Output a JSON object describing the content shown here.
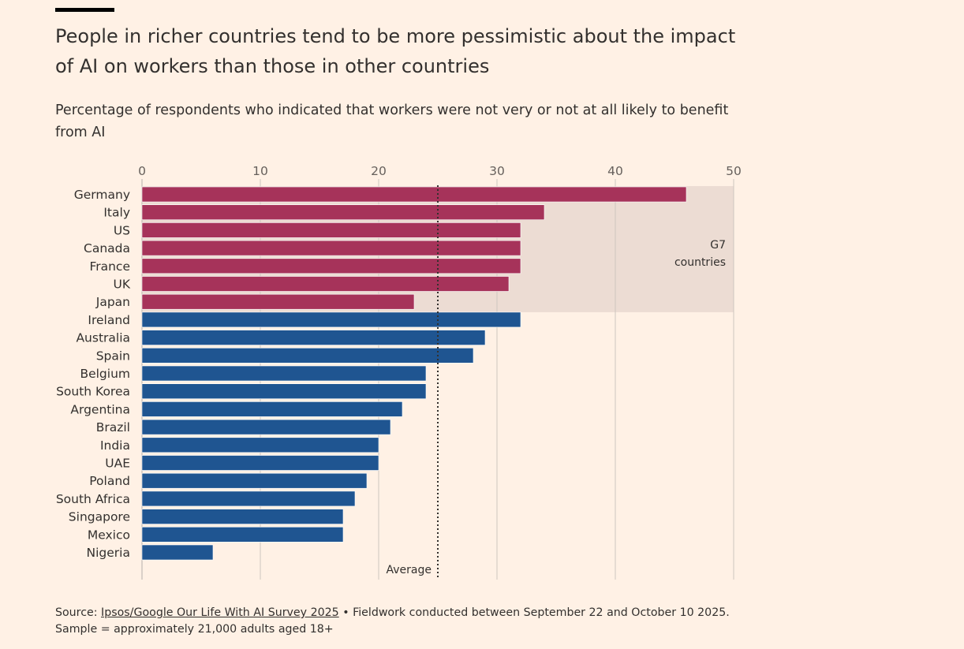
{
  "title": "People in richer countries tend to be more pessimistic about the impact of AI on workers than those in other countries",
  "subtitle": "Percentage of respondents who indicated that workers were not very or not at all likely to benefit from AI",
  "source": {
    "prefix": "Source: ",
    "link_text": "Ipsos/Google Our Life With AI Survey 2025",
    "suffix": " • Fieldwork conducted between September 22 and October 10 2025. Sample = approximately 21,000 adults aged 18+"
  },
  "colors": {
    "g7": "#a6335a",
    "other": "#1f5591",
    "g7_band": "#ecdcd3",
    "background": "#fff1e5",
    "grid": "#cec6bf"
  },
  "chart_data": {
    "type": "bar",
    "orientation": "horizontal",
    "xlim": [
      0,
      50
    ],
    "ticks": [
      0,
      10,
      20,
      30,
      40,
      50
    ],
    "grid": true,
    "categories": [
      "Germany",
      "Italy",
      "US",
      "Canada",
      "France",
      "UK",
      "Japan",
      "Ireland",
      "Australia",
      "Spain",
      "Belgium",
      "South Korea",
      "Argentina",
      "Brazil",
      "India",
      "UAE",
      "Poland",
      "South Africa",
      "Singapore",
      "Mexico",
      "Nigeria"
    ],
    "values": [
      46,
      34,
      32,
      32,
      32,
      31,
      23,
      32,
      29,
      28,
      24,
      24,
      22,
      21,
      20,
      20,
      19,
      18,
      17,
      17,
      6
    ],
    "groups": [
      "g7",
      "g7",
      "g7",
      "g7",
      "g7",
      "g7",
      "g7",
      "other",
      "other",
      "other",
      "other",
      "other",
      "other",
      "other",
      "other",
      "other",
      "other",
      "other",
      "other",
      "other",
      "other"
    ],
    "average": {
      "value": 25,
      "label": "Average"
    },
    "annotation": {
      "line1": "G7",
      "line2": "countries"
    }
  }
}
